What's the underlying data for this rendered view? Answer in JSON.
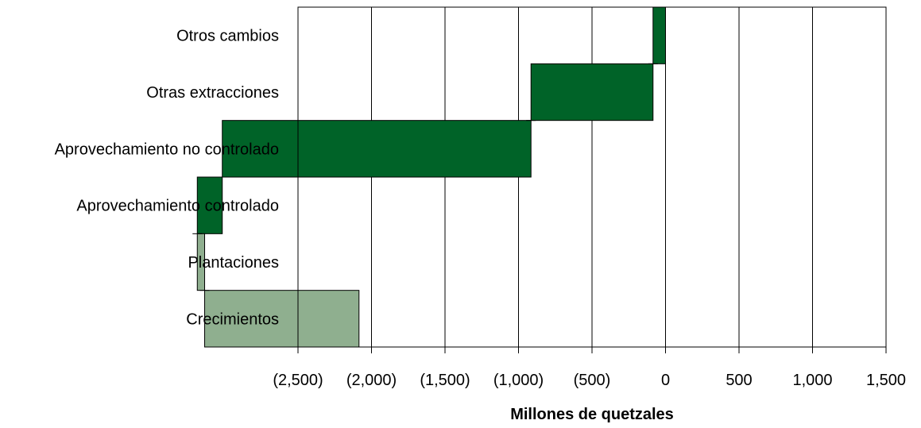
{
  "chart_data": {
    "type": "bar",
    "orientation": "horizontal",
    "title": "",
    "xlabel": "Millones de quetzales",
    "ylabel": "",
    "xlim": [
      -2500,
      1500
    ],
    "xticks": [
      -2500,
      -2000,
      -1500,
      -1000,
      -500,
      0,
      500,
      1000,
      1500
    ],
    "xtick_labels": [
      "(2,500)",
      "(2,000)",
      "(1,500)",
      "(1,000)",
      "(500)",
      "0",
      "500",
      "1,000",
      "1,500"
    ],
    "categories": [
      "Otros cambios",
      "Otras extracciones",
      "Aprovechamiento no controlado",
      "Aprovechamiento controlado",
      "Plantaciones",
      "Crecimientos"
    ],
    "values": [
      -85,
      -830,
      -2100,
      -170,
      50,
      1050
    ],
    "bar_colors": [
      "#006328",
      "#006328",
      "#006328",
      "#006328",
      "#8faf8f",
      "#8faf8f"
    ],
    "grid": true,
    "legend": "none"
  }
}
